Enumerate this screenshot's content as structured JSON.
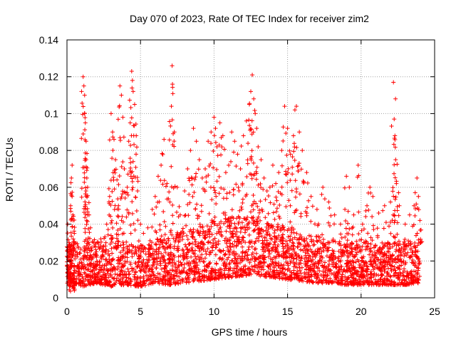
{
  "chart_data": {
    "type": "scatter",
    "title": "Day 070 of 2023, Rate Of TEC Index for receiver zim2",
    "xlabel": "GPS time / hours",
    "ylabel": "ROTI / TECUs",
    "xlim": [
      0,
      25
    ],
    "ylim": [
      0,
      0.14
    ],
    "x_ticks": [
      0,
      5,
      10,
      15,
      20,
      25
    ],
    "x_tick_labels": [
      "0",
      "5",
      "10",
      "15",
      "20",
      "25"
    ],
    "y_ticks": [
      0,
      0.02,
      0.04,
      0.06,
      0.08,
      0.1,
      0.12,
      0.14
    ],
    "y_tick_labels": [
      "0",
      "0.02",
      "0.04",
      "0.06",
      "0.08",
      "0.1",
      "0.12",
      "0.14"
    ],
    "grid": true,
    "marker": "+",
    "color": "#ff0000",
    "series": [
      {
        "points": [
          [
            0.05,
            0.04
          ],
          [
            0.1,
            0.012
          ],
          [
            0.15,
            0.03
          ],
          [
            0.2,
            0.009
          ],
          [
            0.25,
            0.05
          ],
          [
            0.3,
            0.02
          ],
          [
            0.35,
            0.072
          ],
          [
            0.4,
            0.045
          ],
          [
            0.45,
            0.01
          ],
          [
            0.5,
            0.035
          ],
          [
            0.3,
            0.065
          ],
          [
            0.2,
            0.028
          ],
          [
            0.1,
            0.022
          ],
          [
            0.4,
            0.008
          ],
          [
            0.35,
            0.055
          ],
          [
            1.1,
            0.12
          ],
          [
            1.15,
            0.115
          ],
          [
            1.2,
            0.11
          ],
          [
            1.2,
            0.1
          ],
          [
            1.25,
            0.095
          ],
          [
            1.3,
            0.085
          ],
          [
            1.3,
            0.075
          ],
          [
            1.35,
            0.065
          ],
          [
            1.4,
            0.06
          ],
          [
            1.5,
            0.045
          ],
          [
            1.6,
            0.038
          ],
          [
            1.8,
            0.03
          ],
          [
            2.0,
            0.025
          ],
          [
            2.3,
            0.032
          ],
          [
            2.5,
            0.028
          ],
          [
            2.7,
            0.04
          ],
          [
            2.9,
            0.055
          ],
          [
            3.0,
            0.1
          ],
          [
            3.1,
            0.09
          ],
          [
            3.2,
            0.086
          ],
          [
            3.3,
            0.075
          ],
          [
            3.4,
            0.064
          ],
          [
            3.5,
            0.05
          ],
          [
            3.6,
            0.115
          ],
          [
            3.7,
            0.11
          ],
          [
            3.8,
            0.098
          ],
          [
            3.9,
            0.07
          ],
          [
            4.1,
            0.06
          ],
          [
            4.2,
            0.085
          ],
          [
            4.3,
            0.095
          ],
          [
            4.4,
            0.123
          ],
          [
            4.45,
            0.118
          ],
          [
            4.5,
            0.112
          ],
          [
            4.6,
            0.105
          ],
          [
            4.7,
            0.078
          ],
          [
            4.8,
            0.058
          ],
          [
            5.0,
            0.04
          ],
          [
            5.2,
            0.035
          ],
          [
            5.5,
            0.038
          ],
          [
            5.8,
            0.048
          ],
          [
            6.0,
            0.055
          ],
          [
            6.2,
            0.066
          ],
          [
            6.4,
            0.072
          ],
          [
            6.6,
            0.086
          ],
          [
            6.8,
            0.062
          ],
          [
            7.0,
            0.052
          ],
          [
            7.1,
            0.104
          ],
          [
            7.15,
            0.126
          ],
          [
            7.3,
            0.09
          ],
          [
            7.5,
            0.06
          ],
          [
            7.7,
            0.045
          ],
          [
            8.0,
            0.058
          ],
          [
            8.2,
            0.07
          ],
          [
            8.4,
            0.08
          ],
          [
            8.6,
            0.092
          ],
          [
            8.8,
            0.085
          ],
          [
            9.0,
            0.075
          ],
          [
            9.2,
            0.065
          ],
          [
            9.4,
            0.07
          ],
          [
            9.6,
            0.085
          ],
          [
            9.8,
            0.09
          ],
          [
            10.0,
            0.098
          ],
          [
            10.1,
            0.092
          ],
          [
            10.2,
            0.082
          ],
          [
            10.4,
            0.095
          ],
          [
            10.6,
            0.088
          ],
          [
            10.8,
            0.068
          ],
          [
            11.0,
            0.072
          ],
          [
            11.2,
            0.09
          ],
          [
            11.4,
            0.085
          ],
          [
            11.6,
            0.078
          ],
          [
            11.8,
            0.07
          ],
          [
            12.0,
            0.088
          ],
          [
            12.2,
            0.096
          ],
          [
            12.4,
            0.105
          ],
          [
            12.5,
            0.112
          ],
          [
            12.6,
            0.121
          ],
          [
            12.7,
            0.108
          ],
          [
            12.8,
            0.1
          ],
          [
            12.9,
            0.092
          ],
          [
            13.0,
            0.082
          ],
          [
            13.2,
            0.075
          ],
          [
            13.4,
            0.065
          ],
          [
            13.6,
            0.058
          ],
          [
            13.8,
            0.06
          ],
          [
            14.0,
            0.072
          ],
          [
            14.2,
            0.062
          ],
          [
            14.4,
            0.068
          ],
          [
            14.6,
            0.08
          ],
          [
            14.8,
            0.104
          ],
          [
            15.0,
            0.092
          ],
          [
            15.2,
            0.078
          ],
          [
            15.4,
            0.088
          ],
          [
            15.5,
            0.102
          ],
          [
            15.6,
            0.104
          ],
          [
            15.8,
            0.09
          ],
          [
            16.0,
            0.08
          ],
          [
            16.3,
            0.068
          ],
          [
            16.6,
            0.055
          ],
          [
            17.0,
            0.048
          ],
          [
            17.4,
            0.06
          ],
          [
            17.8,
            0.052
          ],
          [
            18.2,
            0.045
          ],
          [
            18.6,
            0.04
          ],
          [
            18.9,
            0.048
          ],
          [
            19.0,
            0.066
          ],
          [
            19.2,
            0.06
          ],
          [
            19.5,
            0.045
          ],
          [
            19.8,
            0.072
          ],
          [
            20.1,
            0.04
          ],
          [
            20.4,
            0.05
          ],
          [
            20.6,
            0.06
          ],
          [
            20.8,
            0.055
          ],
          [
            21.2,
            0.046
          ],
          [
            21.6,
            0.05
          ],
          [
            22.0,
            0.052
          ],
          [
            22.2,
            0.117
          ],
          [
            22.25,
            0.097
          ],
          [
            22.3,
            0.088
          ],
          [
            22.35,
            0.075
          ],
          [
            22.4,
            0.062
          ],
          [
            22.6,
            0.05
          ],
          [
            23.0,
            0.04
          ],
          [
            23.3,
            0.045
          ],
          [
            23.6,
            0.05
          ],
          [
            23.8,
            0.065
          ],
          [
            23.9,
            0.055
          ],
          [
            24.0,
            0.042
          ]
        ],
        "baseline": [
          [
            0.0,
            0.015
          ],
          [
            0.5,
            0.012
          ],
          [
            1.0,
            0.01
          ],
          [
            2.0,
            0.012
          ],
          [
            3.0,
            0.01
          ],
          [
            4.0,
            0.011
          ],
          [
            5.0,
            0.01
          ],
          [
            6.0,
            0.012
          ],
          [
            7.0,
            0.011
          ],
          [
            8.0,
            0.012
          ],
          [
            9.0,
            0.013
          ],
          [
            10.0,
            0.014
          ],
          [
            11.0,
            0.015
          ],
          [
            12.0,
            0.016
          ],
          [
            13.0,
            0.016
          ],
          [
            14.0,
            0.015
          ],
          [
            15.0,
            0.014
          ],
          [
            16.0,
            0.013
          ],
          [
            17.0,
            0.012
          ],
          [
            18.0,
            0.012
          ],
          [
            19.0,
            0.011
          ],
          [
            20.0,
            0.011
          ],
          [
            21.0,
            0.011
          ],
          [
            22.0,
            0.011
          ],
          [
            23.0,
            0.011
          ],
          [
            24.0,
            0.012
          ]
        ],
        "band_top": [
          [
            0.0,
            0.03
          ],
          [
            1.0,
            0.03
          ],
          [
            2.0,
            0.032
          ],
          [
            3.0,
            0.034
          ],
          [
            4.0,
            0.03
          ],
          [
            5.0,
            0.028
          ],
          [
            6.0,
            0.03
          ],
          [
            7.0,
            0.034
          ],
          [
            8.0,
            0.036
          ],
          [
            9.0,
            0.04
          ],
          [
            10.0,
            0.042
          ],
          [
            11.0,
            0.044
          ],
          [
            12.0,
            0.045
          ],
          [
            13.0,
            0.044
          ],
          [
            14.0,
            0.04
          ],
          [
            15.0,
            0.04
          ],
          [
            16.0,
            0.036
          ],
          [
            17.0,
            0.034
          ],
          [
            18.0,
            0.032
          ],
          [
            19.0,
            0.03
          ],
          [
            20.0,
            0.03
          ],
          [
            21.0,
            0.03
          ],
          [
            22.0,
            0.03
          ],
          [
            23.0,
            0.03
          ],
          [
            24.0,
            0.03
          ]
        ]
      }
    ]
  }
}
